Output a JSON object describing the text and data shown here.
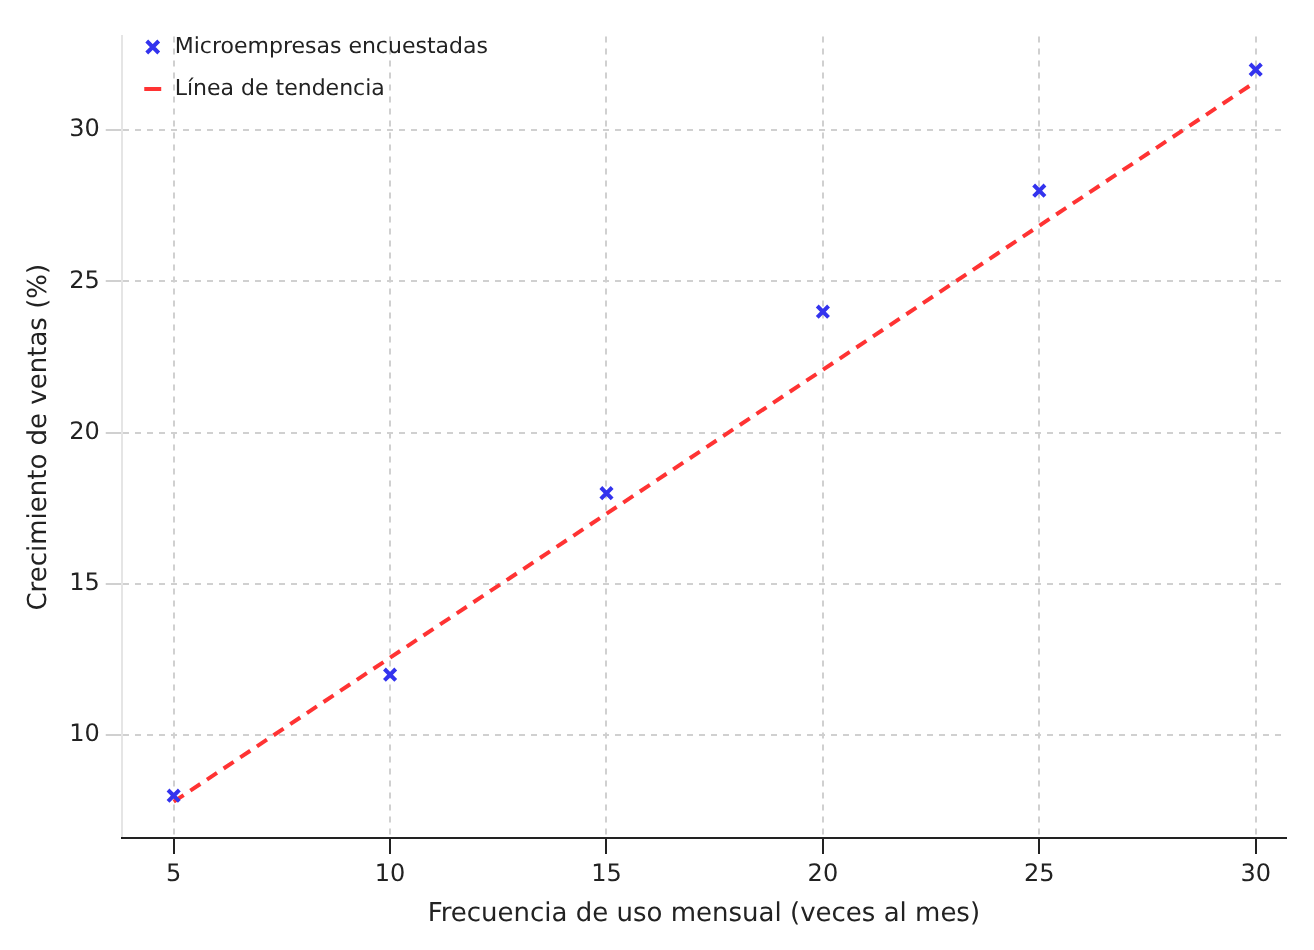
{
  "chart_data": {
    "type": "scatter",
    "xlabel": "Frecuencia de uso mensual (veces al mes)",
    "ylabel": "Crecimiento de ventas (%)",
    "xlim": [
      3.8,
      30.7
    ],
    "xticks": [
      5,
      10,
      15,
      20,
      25,
      30
    ],
    "ylim": [
      6.6,
      33.1
    ],
    "yticks": [
      10,
      15,
      20,
      25,
      30
    ],
    "grid": true,
    "legend": "top left",
    "marker": "cross",
    "series": [
      {
        "name": "Microempresas encuestadas",
        "color": "#3333ee",
        "x": [
          5,
          10,
          15,
          20,
          25,
          30
        ],
        "values": [
          8,
          12,
          18,
          24,
          28,
          32
        ]
      },
      {
        "type": "line",
        "name": "Línea de tendencia",
        "color": "#ff3333",
        "line_style": "dashed",
        "marker": "none",
        "x": [
          5,
          30
        ],
        "values": [
          7.8,
          31.6
        ]
      }
    ]
  }
}
